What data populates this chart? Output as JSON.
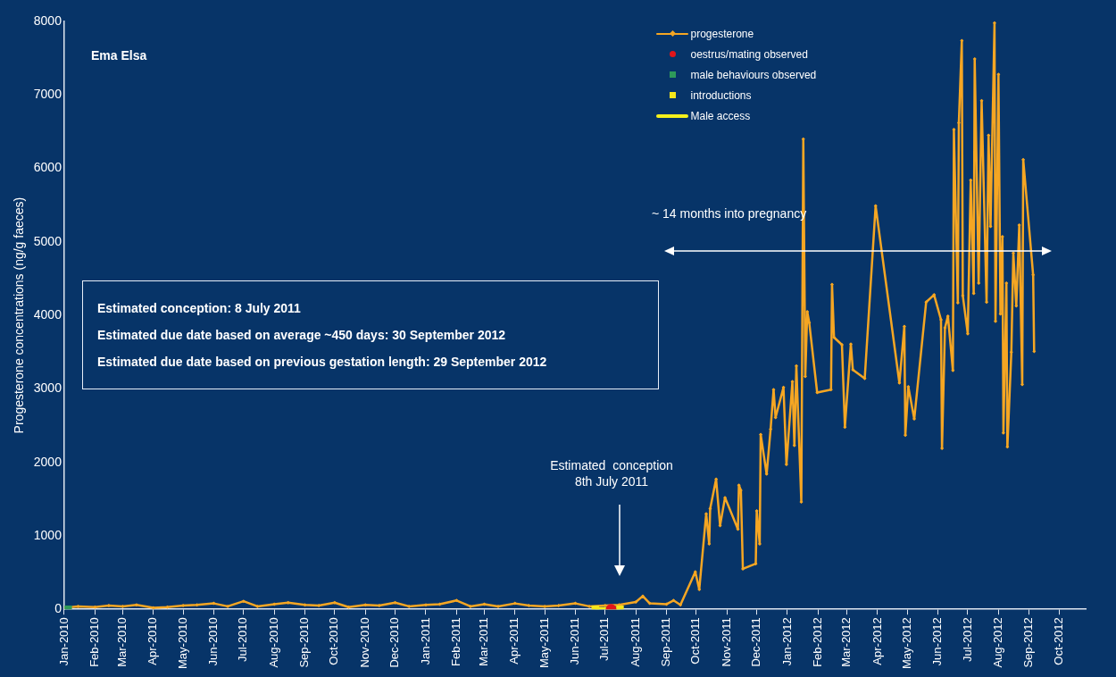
{
  "chart_data": {
    "type": "line",
    "title": "Ema Elsa",
    "ylabel": "Progesterone concentrations (ng/g faeces)",
    "xlim": [
      "2010-01-01",
      "2012-10-28"
    ],
    "xticks": [
      {
        "value": "2010-01-01",
        "label": "Jan-2010"
      },
      {
        "value": "2010-02-01",
        "label": "Feb-2010"
      },
      {
        "value": "2010-03-01",
        "label": "Mar-2010"
      },
      {
        "value": "2010-04-01",
        "label": "Apr-2010"
      },
      {
        "value": "2010-05-01",
        "label": "May-2010"
      },
      {
        "value": "2010-06-01",
        "label": "Jun-2010"
      },
      {
        "value": "2010-07-01",
        "label": "Jul-2010"
      },
      {
        "value": "2010-08-01",
        "label": "Aug-2010"
      },
      {
        "value": "2010-09-01",
        "label": "Sep-2010"
      },
      {
        "value": "2010-10-01",
        "label": "Oct-2010"
      },
      {
        "value": "2010-11-01",
        "label": "Nov-2010"
      },
      {
        "value": "2010-12-01",
        "label": "Dec-2010"
      },
      {
        "value": "2011-01-01",
        "label": "Jan-2011"
      },
      {
        "value": "2011-02-01",
        "label": "Feb-2011"
      },
      {
        "value": "2011-03-01",
        "label": "Mar-2011"
      },
      {
        "value": "2011-04-01",
        "label": "Apr-2011"
      },
      {
        "value": "2011-05-01",
        "label": "May-2011"
      },
      {
        "value": "2011-06-01",
        "label": "Jun-2011"
      },
      {
        "value": "2011-07-01",
        "label": "Jul-2011"
      },
      {
        "value": "2011-08-01",
        "label": "Aug-2011"
      },
      {
        "value": "2011-09-01",
        "label": "Sep-2011"
      },
      {
        "value": "2011-10-01",
        "label": "Oct-2011"
      },
      {
        "value": "2011-11-01",
        "label": "Nov-2011"
      },
      {
        "value": "2011-12-01",
        "label": "Dec-2011"
      },
      {
        "value": "2012-01-01",
        "label": "Jan-2012"
      },
      {
        "value": "2012-02-01",
        "label": "Feb-2012"
      },
      {
        "value": "2012-03-01",
        "label": "Mar-2012"
      },
      {
        "value": "2012-04-01",
        "label": "Apr-2012"
      },
      {
        "value": "2012-05-01",
        "label": "May-2012"
      },
      {
        "value": "2012-06-01",
        "label": "Jun-2012"
      },
      {
        "value": "2012-07-01",
        "label": "Jul-2012"
      },
      {
        "value": "2012-08-01",
        "label": "Aug-2012"
      },
      {
        "value": "2012-09-01",
        "label": "Sep-2012"
      },
      {
        "value": "2012-10-01",
        "label": "Oct-2012"
      }
    ],
    "ylim": [
      0,
      8000
    ],
    "yticks": [
      0,
      1000,
      2000,
      3000,
      4000,
      5000,
      6000,
      7000,
      8000
    ],
    "legend": "top right",
    "grid": false,
    "series": [
      {
        "name": "progesterone",
        "marker": "diamond",
        "color": "#f5a623",
        "x": [
          "2010-01-01",
          "2010-01-15",
          "2010-02-01",
          "2010-02-15",
          "2010-03-01",
          "2010-03-15",
          "2010-04-01",
          "2010-04-15",
          "2010-05-01",
          "2010-05-15",
          "2010-06-01",
          "2010-06-15",
          "2010-07-01",
          "2010-07-15",
          "2010-08-01",
          "2010-08-15",
          "2010-09-01",
          "2010-09-15",
          "2010-10-01",
          "2010-10-15",
          "2010-11-01",
          "2010-11-15",
          "2010-12-01",
          "2010-12-15",
          "2011-01-01",
          "2011-01-15",
          "2011-02-01",
          "2011-02-15",
          "2011-03-01",
          "2011-03-15",
          "2011-04-01",
          "2011-04-15",
          "2011-05-01",
          "2011-05-15",
          "2011-06-01",
          "2011-06-15",
          "2011-07-01",
          "2011-07-15",
          "2011-08-01",
          "2011-08-08",
          "2011-08-15",
          "2011-09-01",
          "2011-09-08",
          "2011-09-15",
          "2011-09-30",
          "2011-10-04",
          "2011-10-11",
          "2011-10-14",
          "2011-10-15",
          "2011-10-21",
          "2011-10-25",
          "2011-10-30",
          "2011-11-12",
          "2011-11-13",
          "2011-11-15",
          "2011-11-17",
          "2011-11-30",
          "2011-12-01",
          "2011-12-04",
          "2011-12-05",
          "2011-12-11",
          "2011-12-15",
          "2011-12-18",
          "2011-12-20",
          "2011-12-28",
          "2011-12-31",
          "2012-01-06",
          "2012-01-08",
          "2012-01-10",
          "2012-01-15",
          "2012-01-17",
          "2012-01-19",
          "2012-01-21",
          "2012-01-23",
          "2012-01-31",
          "2012-02-14",
          "2012-02-15",
          "2012-02-17",
          "2012-02-25",
          "2012-02-28",
          "2012-03-05",
          "2012-03-07",
          "2012-03-19",
          "2012-03-30",
          "2012-04-23",
          "2012-04-28",
          "2012-04-29",
          "2012-05-02",
          "2012-05-08",
          "2012-05-20",
          "2012-05-28",
          "2012-06-04",
          "2012-06-05",
          "2012-06-08",
          "2012-06-11",
          "2012-06-16",
          "2012-06-17",
          "2012-06-21",
          "2012-06-22",
          "2012-06-25",
          "2012-06-26",
          "2012-07-01",
          "2012-07-04",
          "2012-07-07",
          "2012-07-08",
          "2012-07-12",
          "2012-07-15",
          "2012-07-20",
          "2012-07-22",
          "2012-07-24",
          "2012-07-28",
          "2012-07-29",
          "2012-08-01",
          "2012-08-03",
          "2012-08-05",
          "2012-08-06",
          "2012-08-09",
          "2012-08-10",
          "2012-08-14",
          "2012-08-16",
          "2012-08-19",
          "2012-08-22",
          "2012-08-25",
          "2012-08-26",
          "2012-09-05",
          "2012-09-06"
        ],
        "values": [
          20,
          40,
          30,
          50,
          40,
          60,
          20,
          30,
          50,
          60,
          80,
          40,
          110,
          40,
          70,
          90,
          60,
          50,
          90,
          30,
          60,
          50,
          90,
          40,
          60,
          70,
          120,
          40,
          70,
          40,
          80,
          50,
          40,
          50,
          80,
          40,
          50,
          60,
          100,
          180,
          80,
          70,
          120,
          60,
          510,
          270,
          1300,
          890,
          1370,
          1770,
          1140,
          1520,
          1090,
          1690,
          1620,
          550,
          620,
          1340,
          890,
          2380,
          1840,
          2450,
          2990,
          2610,
          3020,
          1970,
          3100,
          2230,
          3310,
          1460,
          6400,
          3170,
          4050,
          3900,
          2950,
          2990,
          4420,
          3700,
          3600,
          2480,
          3610,
          3260,
          3140,
          5490,
          3080,
          3850,
          2370,
          3030,
          2590,
          4180,
          4280,
          3940,
          2190,
          3830,
          3990,
          3250,
          6530,
          4170,
          6620,
          7740,
          4270,
          3750,
          5840,
          4300,
          7490,
          4440,
          6920,
          4180,
          6450,
          5210,
          7980,
          3920,
          7280,
          4020,
          5070,
          2400,
          4440,
          2210,
          3500,
          4850,
          4130,
          5230,
          3060,
          6120,
          4550,
          3510
        ]
      },
      {
        "name": "oestrus/mating observed",
        "type": "scatter",
        "marker": "circle",
        "color": "#e3151a",
        "x": [
          "2011-07-07"
        ],
        "values": [
          0
        ]
      },
      {
        "name": "male behaviours observed",
        "type": "scatter",
        "marker": "square",
        "color": "#2e9a5a",
        "x": [
          "2010-01-05"
        ],
        "values": [
          0
        ]
      },
      {
        "name": "introductions",
        "type": "scatter",
        "marker": "square",
        "color": "#f5e61b",
        "x": [
          "2011-06-21",
          "2011-07-16"
        ],
        "values": [
          0,
          0
        ]
      },
      {
        "name": "Male access",
        "type": "line",
        "marker": "none",
        "color": "#f5f01b",
        "x": [
          "2011-06-21",
          "2011-07-16"
        ],
        "values": [
          0,
          0
        ]
      }
    ],
    "annotations": [
      "Estimated conception: 8 July 2011",
      "Estimated due date based on average ~450 days: 30 September 2012",
      "Estimated due date based on previous gestation length: 29 September 2012",
      "Estimated  conception\n8th July 2011",
      "~ 14 months into pregnancy"
    ]
  }
}
